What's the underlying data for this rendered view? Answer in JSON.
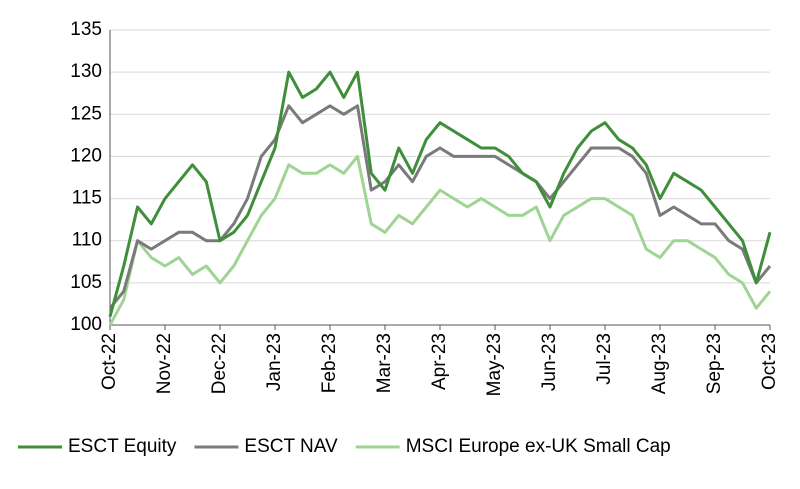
{
  "chart_data": {
    "type": "line",
    "categories": [
      "Oct-22",
      null,
      null,
      null,
      "Nov-22",
      null,
      null,
      null,
      "Dec-22",
      null,
      null,
      null,
      "Jan-23",
      null,
      null,
      null,
      "Feb-23",
      null,
      null,
      null,
      "Mar-23",
      null,
      null,
      null,
      "Apr-23",
      null,
      null,
      null,
      "May-23",
      null,
      null,
      null,
      "Jun-23",
      null,
      null,
      null,
      "Jul-23",
      null,
      null,
      null,
      "Aug-23",
      null,
      null,
      null,
      "Sep-23",
      null,
      null,
      null,
      "Oct-23"
    ],
    "series": [
      {
        "name": "ESCT Equity",
        "color": "#3f8f3a",
        "values": [
          101,
          107,
          114,
          112,
          115,
          117,
          119,
          117,
          110,
          111,
          113,
          117,
          121,
          130,
          127,
          128,
          130,
          127,
          130,
          118,
          116,
          121,
          118,
          122,
          124,
          123,
          122,
          121,
          121,
          120,
          118,
          117,
          114,
          118,
          121,
          123,
          124,
          122,
          121,
          119,
          115,
          118,
          117,
          116,
          114,
          112,
          110,
          105,
          111
        ]
      },
      {
        "name": "ESCT NAV",
        "color": "#7a7a7a",
        "values": [
          102,
          104,
          110,
          109,
          110,
          111,
          111,
          110,
          110,
          112,
          115,
          120,
          122,
          126,
          124,
          125,
          126,
          125,
          126,
          116,
          117,
          119,
          117,
          120,
          121,
          120,
          120,
          120,
          120,
          119,
          118,
          117,
          115,
          117,
          119,
          121,
          121,
          121,
          120,
          118,
          113,
          114,
          113,
          112,
          112,
          110,
          109,
          105,
          107
        ]
      },
      {
        "name": "MSCI Europe ex-UK Small Cap",
        "color": "#9fd494",
        "values": [
          100,
          103,
          110,
          108,
          107,
          108,
          106,
          107,
          105,
          107,
          110,
          113,
          115,
          119,
          118,
          118,
          119,
          118,
          120,
          112,
          111,
          113,
          112,
          114,
          116,
          115,
          114,
          115,
          114,
          113,
          113,
          114,
          110,
          113,
          114,
          115,
          115,
          114,
          113,
          109,
          108,
          110,
          110,
          109,
          108,
          106,
          105,
          102,
          104
        ]
      }
    ],
    "ylim": [
      100,
      135
    ],
    "yticks": [
      100,
      105,
      110,
      115,
      120,
      125,
      130,
      135
    ],
    "grid": true,
    "legend": "bottom"
  }
}
